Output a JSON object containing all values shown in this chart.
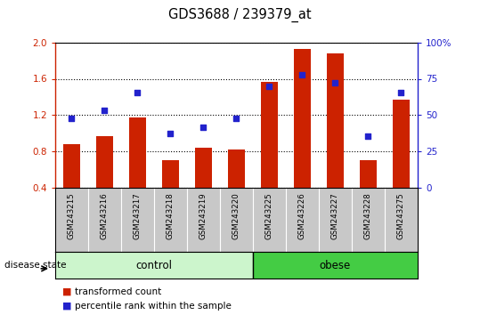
{
  "title": "GDS3688 / 239379_at",
  "samples": [
    "GSM243215",
    "GSM243216",
    "GSM243217",
    "GSM243218",
    "GSM243219",
    "GSM243220",
    "GSM243225",
    "GSM243226",
    "GSM243227",
    "GSM243228",
    "GSM243275"
  ],
  "red_bars": [
    0.88,
    0.97,
    1.17,
    0.7,
    0.84,
    0.82,
    1.57,
    1.93,
    1.88,
    0.7,
    1.37
  ],
  "blue_dots_pct": [
    47.5,
    53.5,
    65.5,
    37.5,
    41.5,
    47.5,
    69.5,
    77.5,
    72.0,
    35.5,
    65.5
  ],
  "ylim_left": [
    0.4,
    2.0
  ],
  "ylim_right": [
    0,
    100
  ],
  "yticks_left": [
    0.4,
    0.8,
    1.2,
    1.6,
    2.0
  ],
  "yticks_right": [
    0,
    25,
    50,
    75,
    100
  ],
  "ytick_labels_right": [
    "0",
    "25",
    "50",
    "75",
    "100%"
  ],
  "control_count": 6,
  "obese_count": 5,
  "disease_state_label": "disease state",
  "bar_color": "#cc2200",
  "dot_color": "#2222cc",
  "bg_color": "#ffffff",
  "tick_area_color": "#c8c8c8",
  "control_color": "#ccf5cc",
  "obese_color": "#44cc44",
  "legend_red_label": "transformed count",
  "legend_blue_label": "percentile rank within the sample"
}
